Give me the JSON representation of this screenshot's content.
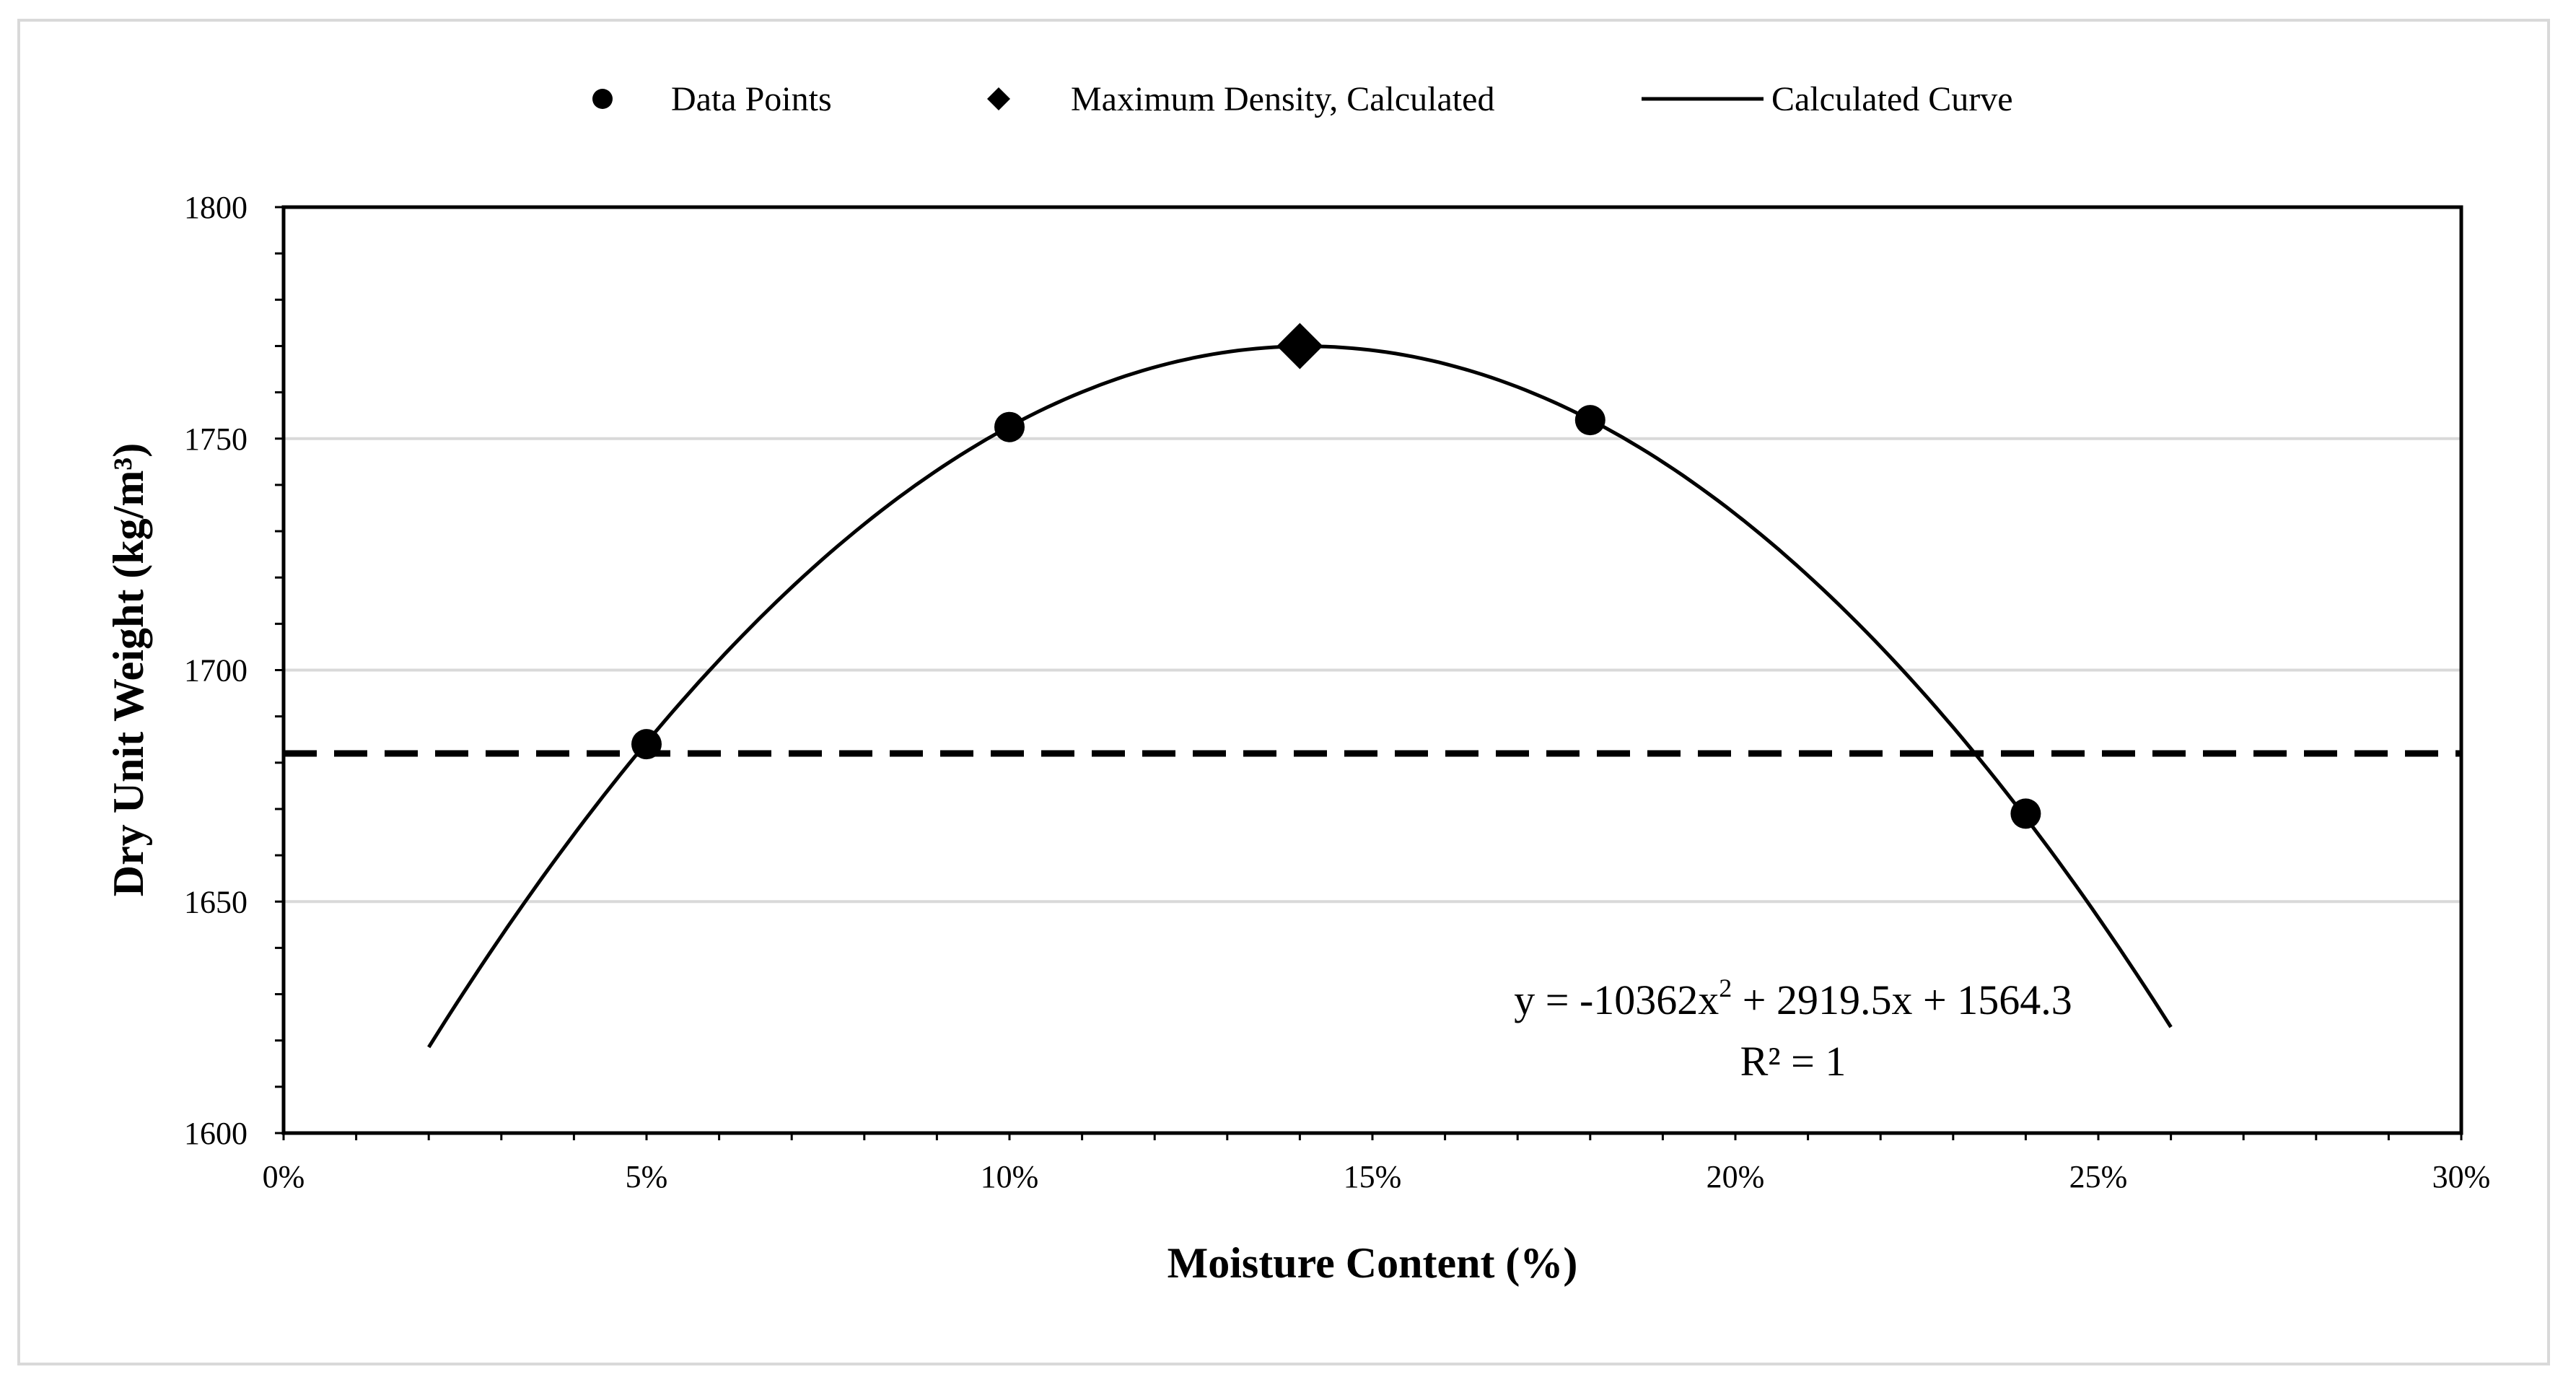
{
  "chart_data": {
    "type": "scatter",
    "xlabel": "Moisture Content (%)",
    "ylabel": "Dry Unit Weight (kg/m³)",
    "xlim": [
      0,
      0.3
    ],
    "ylim": [
      1600,
      1800
    ],
    "x_ticks": [
      0,
      0.05,
      0.1,
      0.15,
      0.2,
      0.25,
      0.3
    ],
    "x_tick_labels": [
      "0%",
      "5%",
      "10%",
      "15%",
      "20%",
      "25%",
      "30%"
    ],
    "y_ticks": [
      1600,
      1650,
      1700,
      1750,
      1800
    ],
    "y_tick_labels": [
      "1600",
      "1650",
      "1700",
      "1750",
      "1800"
    ],
    "grid": "horizontal",
    "legend_position": "top",
    "legend": [
      {
        "label": "Data Points",
        "marker": "circle"
      },
      {
        "label": "Maximum Density, Calculated",
        "marker": "diamond"
      },
      {
        "label": "Calculated Curve",
        "marker": "line"
      }
    ],
    "series": [
      {
        "name": "Data Points",
        "type": "scatter",
        "marker": "circle",
        "x": [
          0.05,
          0.1,
          0.18,
          0.24
        ],
        "y": [
          1684,
          1752.5,
          1754,
          1669
        ]
      },
      {
        "name": "Maximum Density, Calculated",
        "type": "scatter",
        "marker": "diamond",
        "x": [
          0.14
        ],
        "y": [
          1770
        ]
      },
      {
        "name": "Calculated Curve",
        "type": "line",
        "x_range": [
          0.02,
          0.26
        ],
        "coefficients": {
          "a": -10362,
          "b": 2919.5,
          "c": 1564.3
        }
      }
    ],
    "reference_line": {
      "type": "horizontal",
      "style": "dashed",
      "y": 1682
    },
    "annotations": {
      "equation_prefix": "y = -10362x",
      "equation_sup": "2",
      "equation_suffix": " + 2919.5x + 1564.3",
      "r_squared": "R² = 1"
    },
    "colors": {
      "marker": "#000000",
      "grid": "#d9d9d9",
      "axis": "#000000",
      "frame": "#d9d9d9"
    }
  }
}
